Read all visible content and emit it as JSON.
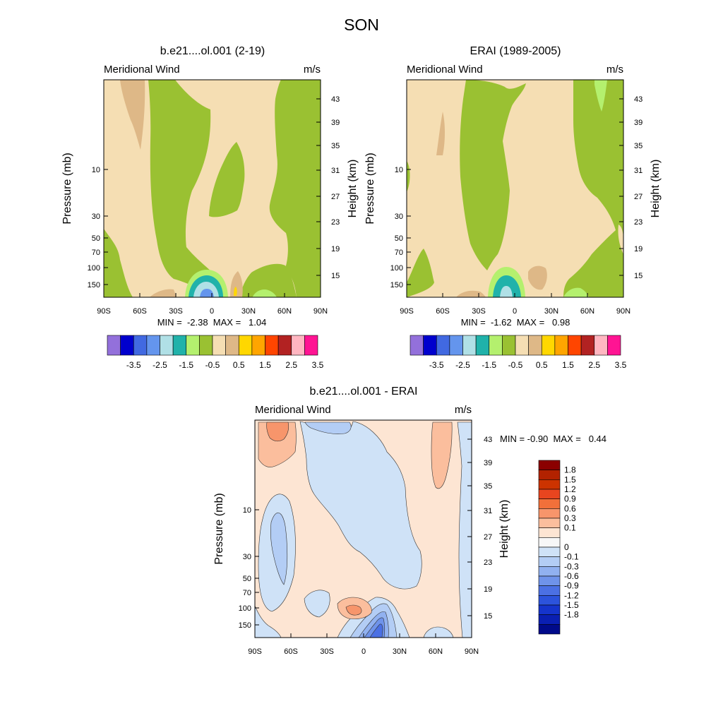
{
  "page_title": "SON",
  "chart_data": [
    {
      "type": "heatmap",
      "panel": "model",
      "title": "b.e21....ol.001 (2-19)",
      "left_string": "Meridional Wind",
      "right_string": "m/s",
      "ylabel": "Pressure (mb)",
      "ylabel_right": "Height (km)",
      "x_ticks": [
        "90S",
        "60S",
        "30S",
        "0",
        "30N",
        "60N",
        "90N"
      ],
      "x_values": [
        -90,
        -60,
        -30,
        0,
        30,
        60,
        90
      ],
      "xlim": [
        -90,
        90
      ],
      "ylim_mb": [
        200,
        1
      ],
      "y_ticks": [
        {
          "label": "10",
          "p": 10
        },
        {
          "label": "30",
          "p": 30
        },
        {
          "label": "50",
          "p": 50
        },
        {
          "label": "70",
          "p": 70
        },
        {
          "label": "100",
          "p": 100
        },
        {
          "label": "150",
          "p": 150
        }
      ],
      "height_ticks": [
        {
          "label": "43",
          "km": 43
        },
        {
          "label": "39",
          "km": 39
        },
        {
          "label": "35",
          "km": 35
        },
        {
          "label": "31",
          "km": 31
        },
        {
          "label": "27",
          "km": 27
        },
        {
          "label": "23",
          "km": 23
        },
        {
          "label": "19",
          "km": 19
        },
        {
          "label": "15",
          "km": 15
        }
      ],
      "stats_text": "MIN =  -2.38  MAX =   1.04",
      "min": -2.38,
      "max": 1.04,
      "legend": {
        "orientation": "horizontal",
        "colors": [
          "#9370db",
          "#0000cd",
          "#4169e1",
          "#6495ed",
          "#b0e0e6",
          "#20b2aa",
          "#b4f06e",
          "#9ac132",
          "#f5deb3",
          "#deb887",
          "#ffd700",
          "#ffa500",
          "#ff4500",
          "#b22222",
          "#ffb6c1",
          "#ff1493"
        ],
        "labels": [
          "-3.5",
          "-2.5",
          "-1.5",
          "-0.5",
          "0.5",
          "1.5",
          "2.5",
          "3.5"
        ]
      }
    },
    {
      "type": "heatmap",
      "panel": "obs",
      "title": "ERAI (1989-2005)",
      "left_string": "Meridional Wind",
      "right_string": "m/s",
      "ylabel": "Pressure (mb)",
      "ylabel_right": "Height (km)",
      "x_ticks": [
        "90S",
        "60S",
        "30S",
        "0",
        "30N",
        "60N",
        "90N"
      ],
      "x_values": [
        -90,
        -60,
        -30,
        0,
        30,
        60,
        90
      ],
      "xlim": [
        -90,
        90
      ],
      "ylim_mb": [
        200,
        1
      ],
      "y_ticks": [
        {
          "label": "10",
          "p": 10
        },
        {
          "label": "30",
          "p": 30
        },
        {
          "label": "50",
          "p": 50
        },
        {
          "label": "70",
          "p": 70
        },
        {
          "label": "100",
          "p": 100
        },
        {
          "label": "150",
          "p": 150
        }
      ],
      "height_ticks": [
        {
          "label": "43",
          "km": 43
        },
        {
          "label": "39",
          "km": 39
        },
        {
          "label": "35",
          "km": 35
        },
        {
          "label": "31",
          "km": 31
        },
        {
          "label": "27",
          "km": 27
        },
        {
          "label": "23",
          "km": 23
        },
        {
          "label": "19",
          "km": 19
        },
        {
          "label": "15",
          "km": 15
        }
      ],
      "stats_text": "MIN =  -1.62  MAX =   0.98",
      "min": -1.62,
      "max": 0.98,
      "legend": {
        "orientation": "horizontal",
        "colors": [
          "#9370db",
          "#0000cd",
          "#4169e1",
          "#6495ed",
          "#b0e0e6",
          "#20b2aa",
          "#b4f06e",
          "#9ac132",
          "#f5deb3",
          "#deb887",
          "#ffd700",
          "#ffa500",
          "#ff4500",
          "#b22222",
          "#ffb6c1",
          "#ff1493"
        ],
        "labels": [
          "-3.5",
          "-2.5",
          "-1.5",
          "-0.5",
          "0.5",
          "1.5",
          "2.5",
          "3.5"
        ]
      }
    },
    {
      "type": "heatmap",
      "panel": "difference",
      "title": "b.e21....ol.001 - ERAI",
      "left_string": "Meridional Wind",
      "right_string": "m/s",
      "ylabel": "Pressure (mb)",
      "ylabel_right": "Height (km)",
      "x_ticks": [
        "90S",
        "60S",
        "30S",
        "0",
        "30N",
        "60N",
        "90N"
      ],
      "x_values": [
        -90,
        -60,
        -30,
        0,
        30,
        60,
        90
      ],
      "xlim": [
        -90,
        90
      ],
      "ylim_mb": [
        200,
        1
      ],
      "y_ticks": [
        {
          "label": "10",
          "p": 10
        },
        {
          "label": "30",
          "p": 30
        },
        {
          "label": "50",
          "p": 50
        },
        {
          "label": "70",
          "p": 70
        },
        {
          "label": "100",
          "p": 100
        },
        {
          "label": "150",
          "p": 150
        }
      ],
      "height_ticks": [
        {
          "label": "43",
          "km": 43
        },
        {
          "label": "39",
          "km": 39
        },
        {
          "label": "35",
          "km": 35
        },
        {
          "label": "31",
          "km": 31
        },
        {
          "label": "27",
          "km": 27
        },
        {
          "label": "23",
          "km": 23
        },
        {
          "label": "19",
          "km": 19
        },
        {
          "label": "15",
          "km": 15
        }
      ],
      "stats_text": "MIN = -0.90  MAX =   0.44",
      "min": -0.9,
      "max": 0.44,
      "legend": {
        "orientation": "vertical",
        "colors": [
          "#8b0000",
          "#b22200",
          "#cc3300",
          "#e8451f",
          "#f2703a",
          "#f7956b",
          "#fbbe9d",
          "#fde5d3",
          "#f7f7f7",
          "#cfe2f7",
          "#b3cdf5",
          "#91b1f0",
          "#6f93ea",
          "#4b70e4",
          "#2c53dc",
          "#1534cc",
          "#0a1fb2",
          "#000a8a"
        ],
        "labels": [
          "1.8",
          "1.5",
          "1.2",
          "0.9",
          "0.6",
          "0.3",
          "0.1",
          "0",
          "-0.1",
          "-0.3",
          "-0.6",
          "-0.9",
          "-1.2",
          "-1.5",
          "-1.8"
        ]
      }
    }
  ]
}
